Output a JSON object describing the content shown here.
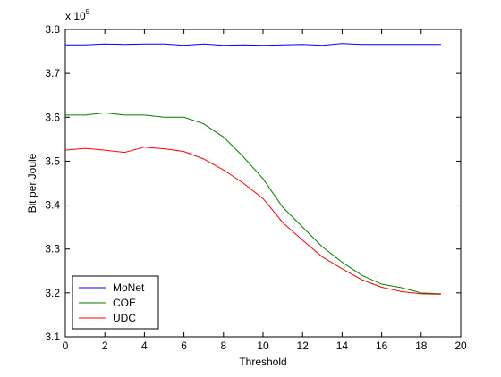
{
  "chart_data": {
    "type": "line",
    "xlabel": "Threshold",
    "ylabel": "Bit per Joule",
    "y_multiplier": "x 10",
    "y_multiplier_exponent": "5",
    "xlim": [
      0,
      20
    ],
    "ylim": [
      3.1,
      3.8
    ],
    "xticks": [
      "0",
      "2",
      "4",
      "6",
      "8",
      "10",
      "12",
      "14",
      "16",
      "18",
      "20"
    ],
    "yticks": [
      "3.1",
      "3.2",
      "3.3",
      "3.4",
      "3.5",
      "3.6",
      "3.7",
      "3.8"
    ],
    "grid": false,
    "legend_position": "bottom-left",
    "x": [
      0,
      1,
      2,
      3,
      4,
      5,
      6,
      7,
      8,
      9,
      10,
      11,
      12,
      13,
      14,
      15,
      16,
      17,
      18,
      19
    ],
    "series": [
      {
        "name": "MoNet",
        "color": "#0000ff",
        "values": [
          3.765,
          3.765,
          3.767,
          3.766,
          3.767,
          3.767,
          3.764,
          3.767,
          3.764,
          3.765,
          3.764,
          3.765,
          3.766,
          3.764,
          3.768,
          3.766,
          3.766,
          3.766,
          3.766,
          3.766
        ]
      },
      {
        "name": "COE",
        "color": "#008000",
        "values": [
          3.605,
          3.605,
          3.61,
          3.605,
          3.605,
          3.6,
          3.6,
          3.585,
          3.555,
          3.51,
          3.46,
          3.395,
          3.35,
          3.305,
          3.27,
          3.24,
          3.22,
          3.212,
          3.2,
          3.198
        ]
      },
      {
        "name": "UDC",
        "color": "#ff0000",
        "values": [
          3.525,
          3.529,
          3.525,
          3.52,
          3.532,
          3.528,
          3.522,
          3.505,
          3.48,
          3.45,
          3.415,
          3.36,
          3.32,
          3.282,
          3.255,
          3.23,
          3.213,
          3.203,
          3.198,
          3.197
        ]
      }
    ]
  }
}
